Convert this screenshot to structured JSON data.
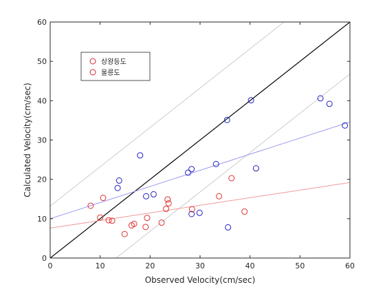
{
  "chart_data": {
    "type": "scatter",
    "xlabel": "Observed Velocity(cm/sec)",
    "ylabel": "Calculated Velocity(cm/sec)",
    "xlim": [
      0,
      60
    ],
    "ylim": [
      0,
      60
    ],
    "x_ticks": [
      "0",
      "10",
      "20",
      "30",
      "40",
      "50",
      "60"
    ],
    "y_ticks": [
      "0",
      "10",
      "20",
      "30",
      "40",
      "50",
      "60"
    ],
    "grid": false,
    "legend_position": "upper-left",
    "legend": [
      {
        "label": "상왕등도",
        "color": "#d62728"
      },
      {
        "label": "울릉도",
        "color": "#d62728"
      }
    ],
    "series": [
      {
        "color": "#2020c0",
        "points": [
          [
            13.5,
            17.8
          ],
          [
            13.8,
            19.7
          ],
          [
            18.0,
            26.1
          ],
          [
            19.2,
            15.7
          ],
          [
            20.7,
            16.2
          ],
          [
            27.6,
            21.7
          ],
          [
            28.3,
            22.6
          ],
          [
            28.3,
            11.2
          ],
          [
            29.9,
            11.5
          ],
          [
            33.2,
            23.9
          ],
          [
            35.4,
            35.1
          ],
          [
            35.6,
            7.8
          ],
          [
            40.2,
            40.1
          ],
          [
            41.2,
            22.8
          ],
          [
            54.1,
            40.6
          ],
          [
            55.9,
            39.2
          ],
          [
            59.0,
            33.7
          ]
        ],
        "fit": [
          [
            0,
            10.0
          ],
          [
            60,
            34.6
          ]
        ],
        "fit_color": "#9a9af0"
      },
      {
        "color": "#e03030",
        "points": [
          [
            8.1,
            13.3
          ],
          [
            10.0,
            10.3
          ],
          [
            10.6,
            15.3
          ],
          [
            11.7,
            9.6
          ],
          [
            12.4,
            9.5
          ],
          [
            14.9,
            6.1
          ],
          [
            16.3,
            8.3
          ],
          [
            16.8,
            8.7
          ],
          [
            19.1,
            7.9
          ],
          [
            19.4,
            10.2
          ],
          [
            22.3,
            9.0
          ],
          [
            23.2,
            12.5
          ],
          [
            23.5,
            14.9
          ],
          [
            23.7,
            13.9
          ],
          [
            28.4,
            12.4
          ],
          [
            33.8,
            15.7
          ],
          [
            36.3,
            20.3
          ],
          [
            38.9,
            11.8
          ]
        ],
        "fit": [
          [
            0,
            7.6
          ],
          [
            60,
            19.2
          ]
        ],
        "fit_color": "#f09a9a"
      }
    ],
    "reference_lines": [
      {
        "role": "identity",
        "points": [
          [
            0,
            0
          ],
          [
            60,
            60
          ]
        ],
        "color": "#000000"
      },
      {
        "role": "upper-bound",
        "points": [
          [
            0,
            13.2
          ],
          [
            46.8,
            60
          ]
        ],
        "color": "#cccccc"
      },
      {
        "role": "lower-bound",
        "points": [
          [
            13.2,
            0
          ],
          [
            60,
            46.8
          ]
        ],
        "color": "#cccccc"
      }
    ]
  }
}
